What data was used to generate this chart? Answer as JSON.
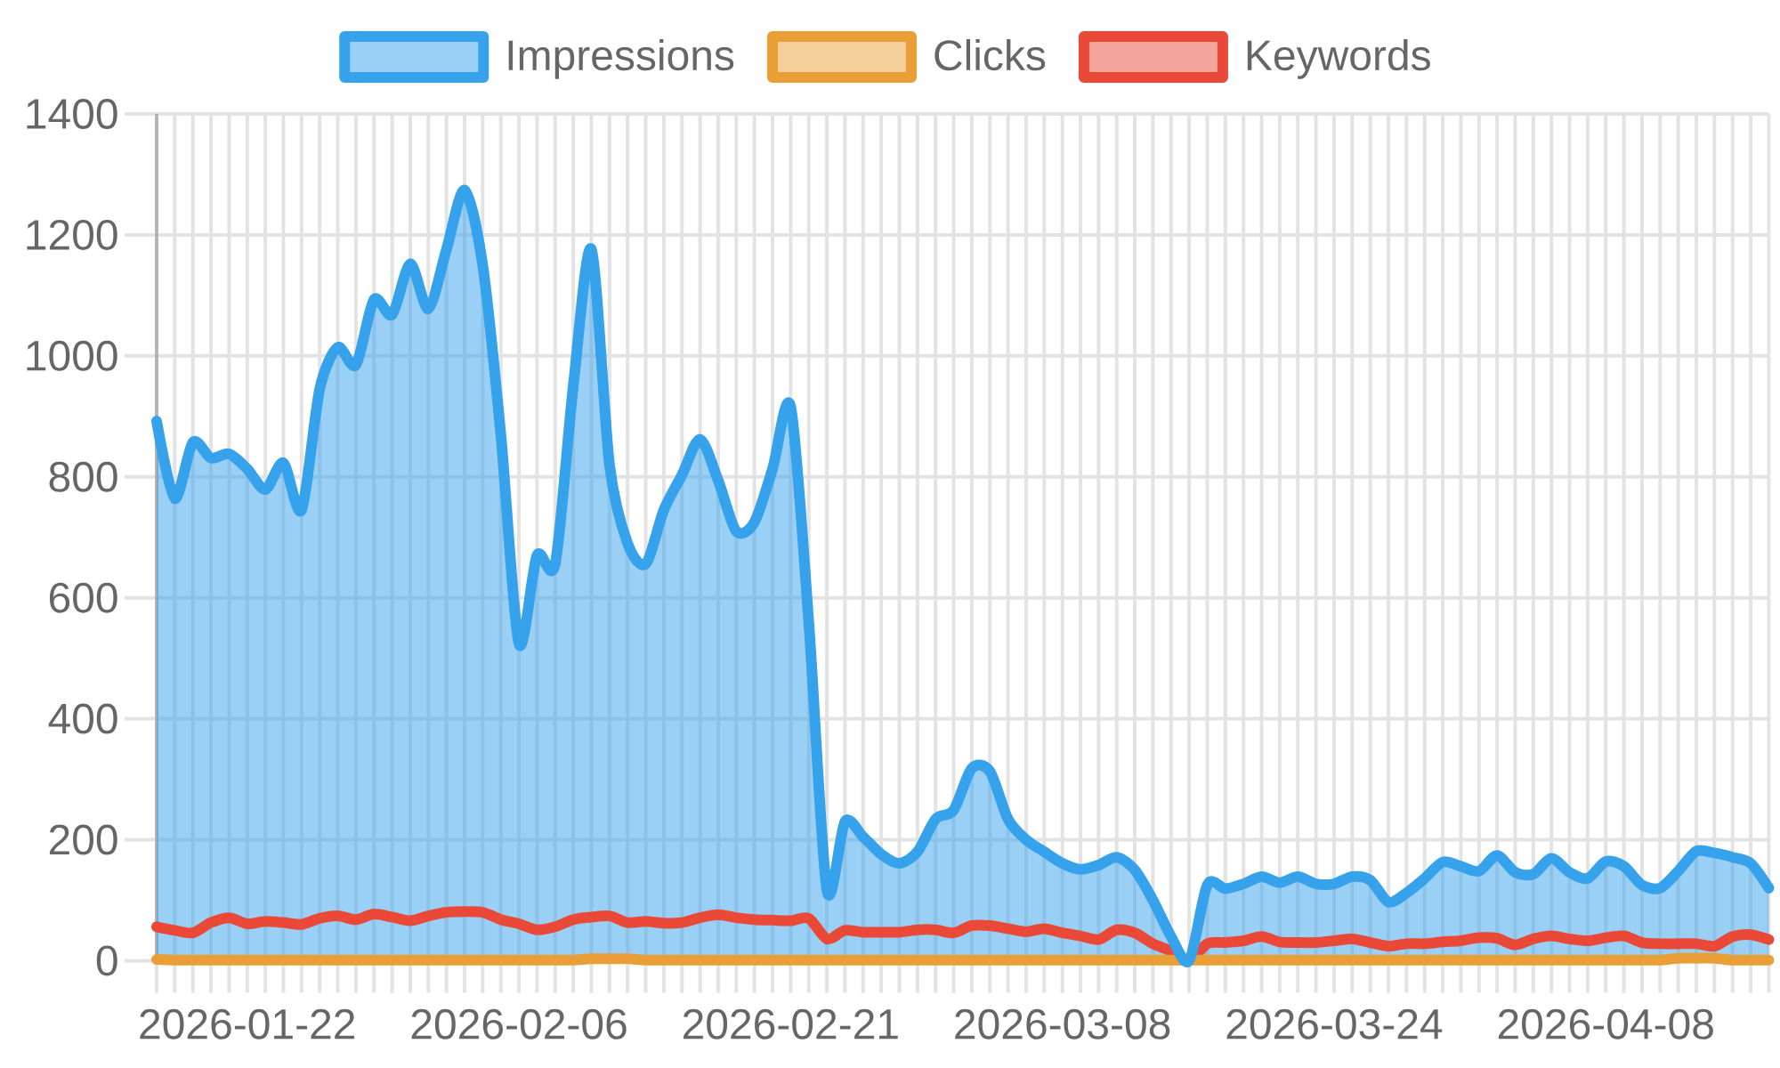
{
  "chart_data": {
    "type": "line",
    "categories": [
      null,
      null,
      null,
      null,
      null,
      "2026-01-22",
      null,
      null,
      null,
      null,
      null,
      null,
      null,
      null,
      null,
      null,
      null,
      null,
      null,
      null,
      "2026-02-06",
      null,
      null,
      null,
      null,
      null,
      null,
      null,
      null,
      null,
      null,
      null,
      null,
      null,
      null,
      "2026-02-21",
      null,
      null,
      null,
      null,
      null,
      null,
      null,
      null,
      null,
      null,
      null,
      null,
      null,
      null,
      "2026-03-08",
      null,
      null,
      null,
      null,
      null,
      null,
      null,
      null,
      null,
      null,
      null,
      null,
      null,
      null,
      "2026-03-24",
      null,
      null,
      null,
      null,
      null,
      null,
      null,
      null,
      null,
      null,
      null,
      null,
      null,
      null,
      "2026-04-08",
      null,
      null,
      null,
      null,
      null,
      null,
      null,
      null,
      null
    ],
    "series": [
      {
        "name": "Impressions",
        "type": "area",
        "color": "#36a2eb",
        "values": [
          892,
          764,
          857,
          831,
          838,
          813,
          779,
          823,
          745,
          945,
          1014,
          985,
          1093,
          1068,
          1152,
          1078,
          1176,
          1274,
          1150,
          870,
          524,
          670,
          656,
          950,
          1176,
          820,
          690,
          656,
          745,
          803,
          862,
          794,
          710,
          725,
          813,
          916,
          560,
          117,
          230,
          205,
          176,
          161,
          180,
          234,
          249,
          318,
          313,
          234,
          200,
          180,
          161,
          151,
          158,
          171,
          150,
          100,
          40,
          0,
          125,
          119,
          127,
          139,
          129,
          139,
          127,
          127,
          139,
          133,
          97,
          112,
          136,
          163,
          156,
          148,
          174,
          146,
          143,
          169,
          146,
          136,
          164,
          156,
          125,
          120,
          148,
          181,
          178,
          171,
          161,
          120
        ]
      },
      {
        "name": "Clicks",
        "color": "#e99f35",
        "values": [
          2,
          1,
          1,
          1,
          1,
          1,
          1,
          1,
          1,
          1,
          1,
          1,
          1,
          1,
          1,
          1,
          1,
          1,
          1,
          1,
          1,
          1,
          1,
          1,
          3,
          3,
          3,
          1,
          1,
          1,
          1,
          1,
          1,
          1,
          1,
          1,
          1,
          1,
          1,
          1,
          1,
          1,
          1,
          1,
          1,
          1,
          1,
          1,
          1,
          1,
          1,
          1,
          1,
          1,
          1,
          1,
          1,
          1,
          1,
          1,
          1,
          1,
          1,
          1,
          1,
          1,
          1,
          1,
          1,
          1,
          1,
          1,
          1,
          1,
          1,
          1,
          1,
          1,
          1,
          1,
          1,
          1,
          1,
          1,
          4,
          4,
          4,
          1,
          1,
          1
        ]
      },
      {
        "name": "Keywords",
        "color": "#ea4938",
        "values": [
          56,
          50,
          46,
          63,
          71,
          61,
          65,
          63,
          60,
          70,
          74,
          68,
          77,
          72,
          66,
          74,
          80,
          81,
          80,
          68,
          61,
          51,
          56,
          68,
          72,
          74,
          63,
          65,
          62,
          63,
          71,
          76,
          71,
          68,
          67,
          66,
          70,
          36,
          50,
          47,
          47,
          47,
          51,
          51,
          46,
          58,
          58,
          53,
          48,
          53,
          46,
          41,
          35,
          51,
          46,
          28,
          16,
          0,
          28,
          30,
          33,
          40,
          31,
          30,
          30,
          33,
          36,
          30,
          24,
          28,
          28,
          31,
          33,
          38,
          37,
          26,
          36,
          41,
          36,
          33,
          38,
          41,
          30,
          28,
          28,
          28,
          24,
          40,
          43,
          35
        ]
      }
    ],
    "ylim": [
      0,
      1400
    ],
    "yticks": [
      0,
      200,
      400,
      600,
      800,
      1000,
      1200,
      1400
    ],
    "grid": true,
    "legend": "top",
    "marker": "none",
    "line_style": "solid"
  }
}
